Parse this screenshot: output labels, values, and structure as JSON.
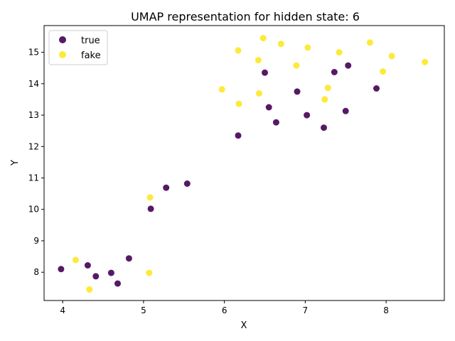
{
  "chart_data": {
    "type": "scatter",
    "title": "UMAP representation for hidden state: 6",
    "xlabel": "X",
    "ylabel": "Y",
    "xlim": [
      3.77,
      8.72
    ],
    "ylim": [
      7.1,
      15.85
    ],
    "xticks": [
      "4",
      "5",
      "6",
      "7",
      "8"
    ],
    "yticks": [
      "8",
      "9",
      "10",
      "11",
      "12",
      "13",
      "14",
      "15"
    ],
    "grid": false,
    "legend_position": "top-left",
    "series": [
      {
        "name": "true",
        "color": "#440154",
        "points": [
          [
            3.98,
            8.1
          ],
          [
            4.31,
            8.22
          ],
          [
            4.41,
            7.87
          ],
          [
            4.6,
            7.98
          ],
          [
            4.68,
            7.64
          ],
          [
            4.82,
            8.44
          ],
          [
            5.09,
            10.02
          ],
          [
            5.28,
            10.69
          ],
          [
            5.54,
            10.82
          ],
          [
            6.17,
            12.35
          ],
          [
            6.5,
            14.35
          ],
          [
            6.55,
            13.25
          ],
          [
            6.64,
            12.77
          ],
          [
            6.9,
            13.75
          ],
          [
            7.02,
            13.0
          ],
          [
            7.23,
            12.6
          ],
          [
            7.36,
            14.37
          ],
          [
            7.5,
            13.13
          ],
          [
            7.53,
            14.58
          ],
          [
            7.88,
            13.85
          ]
        ]
      },
      {
        "name": "fake",
        "color": "#fde725",
        "points": [
          [
            4.16,
            8.39
          ],
          [
            4.33,
            7.45
          ],
          [
            5.07,
            7.98
          ],
          [
            5.08,
            10.38
          ],
          [
            5.97,
            13.82
          ],
          [
            6.17,
            15.06
          ],
          [
            6.18,
            13.36
          ],
          [
            6.42,
            14.75
          ],
          [
            6.43,
            13.69
          ],
          [
            6.48,
            15.45
          ],
          [
            6.7,
            15.27
          ],
          [
            6.89,
            14.58
          ],
          [
            7.03,
            15.15
          ],
          [
            7.24,
            13.5
          ],
          [
            7.28,
            13.87
          ],
          [
            7.42,
            15.0
          ],
          [
            7.8,
            15.31
          ],
          [
            7.96,
            14.39
          ],
          [
            8.07,
            14.88
          ],
          [
            8.48,
            14.69
          ]
        ]
      }
    ]
  }
}
